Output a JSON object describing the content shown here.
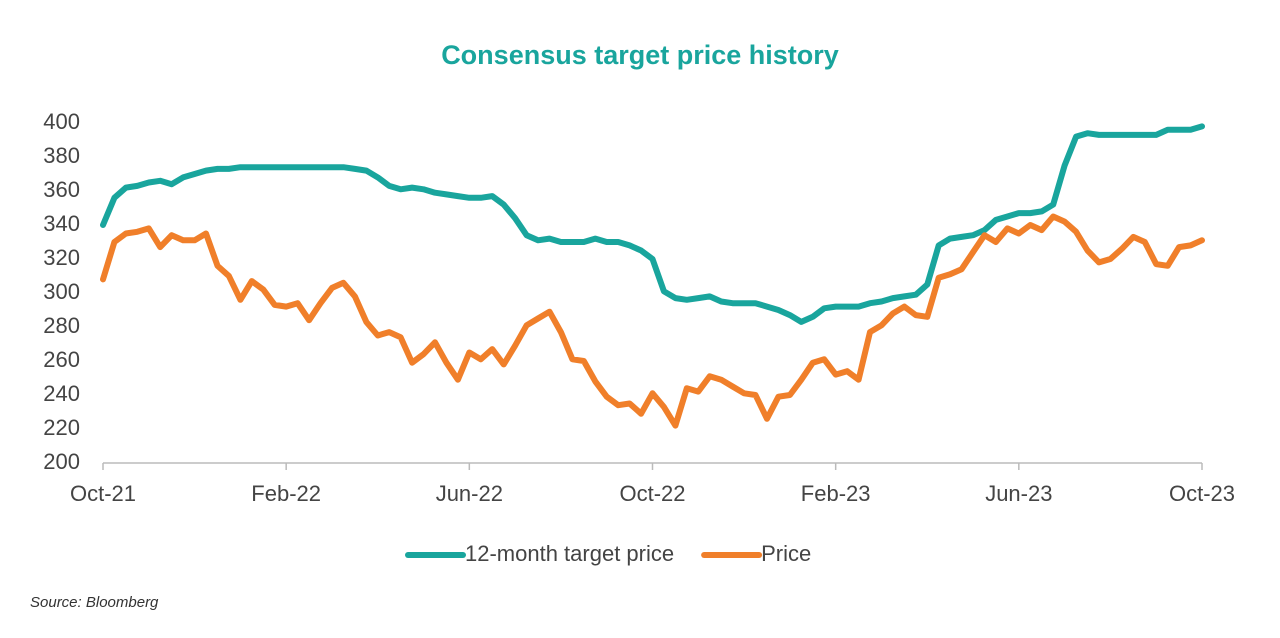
{
  "chart_data": {
    "type": "line",
    "title": "Consensus target price history",
    "source": "Source: Bloomberg",
    "categories": [
      "Oct-21",
      null,
      null,
      null,
      null,
      null,
      null,
      null,
      null,
      null,
      null,
      null,
      null,
      null,
      null,
      null,
      "Feb-22",
      null,
      null,
      null,
      null,
      null,
      null,
      null,
      null,
      null,
      null,
      null,
      null,
      null,
      null,
      null,
      "Jun-22",
      null,
      null,
      null,
      null,
      null,
      null,
      null,
      null,
      null,
      null,
      null,
      null,
      null,
      null,
      null,
      "Oct-22",
      null,
      null,
      null,
      null,
      null,
      null,
      null,
      null,
      null,
      null,
      null,
      null,
      null,
      null,
      null,
      "Feb-23",
      null,
      null,
      null,
      null,
      null,
      null,
      null,
      null,
      null,
      null,
      null,
      null,
      null,
      null,
      null,
      "Jun-23",
      null,
      null,
      null,
      null,
      null,
      null,
      null,
      null,
      null,
      null,
      null,
      null,
      null,
      null,
      null,
      "Oct-23"
    ],
    "series": [
      {
        "name": "12-month target price",
        "color": "#19a59d",
        "values": [
          340,
          356,
          362,
          363,
          365,
          366,
          364,
          368,
          370,
          372,
          373,
          373,
          374,
          374,
          374,
          374,
          374,
          374,
          374,
          374,
          374,
          374,
          373,
          372,
          368,
          363,
          361,
          362,
          361,
          359,
          358,
          357,
          356,
          356,
          357,
          352,
          344,
          334,
          331,
          332,
          330,
          330,
          330,
          332,
          330,
          330,
          328,
          325,
          320,
          301,
          297,
          296,
          297,
          298,
          295,
          294,
          294,
          294,
          292,
          290,
          287,
          283,
          286,
          291,
          292,
          292,
          292,
          294,
          295,
          297,
          298,
          299,
          305,
          328,
          332,
          333,
          334,
          337,
          343,
          345,
          347,
          347,
          348,
          352,
          375,
          392,
          394,
          393,
          393,
          393,
          393,
          393,
          393,
          396,
          396,
          396,
          398
        ]
      },
      {
        "name": "Price",
        "color": "#f07f2a",
        "values": [
          308,
          330,
          335,
          336,
          338,
          327,
          334,
          331,
          331,
          335,
          316,
          310,
          296,
          307,
          302,
          293,
          292,
          294,
          284,
          294,
          303,
          306,
          298,
          283,
          275,
          277,
          274,
          259,
          264,
          271,
          259,
          249,
          265,
          261,
          267,
          258,
          269,
          281,
          285,
          289,
          277,
          261,
          260,
          248,
          239,
          234,
          235,
          229,
          241,
          233,
          222,
          244,
          242,
          251,
          249,
          245,
          241,
          240,
          226,
          239,
          240,
          249,
          259,
          261,
          252,
          254,
          249,
          277,
          281,
          288,
          292,
          287,
          286,
          309,
          311,
          314,
          324,
          334,
          330,
          338,
          335,
          340,
          337,
          345,
          342,
          336,
          325,
          318,
          320,
          326,
          333,
          330,
          317,
          316,
          327,
          328,
          331
        ]
      }
    ],
    "ylim": [
      200,
      400
    ],
    "yticks": [
      200,
      220,
      240,
      260,
      280,
      300,
      320,
      340,
      360,
      380,
      400
    ],
    "grid": false,
    "legend": "bottom"
  }
}
